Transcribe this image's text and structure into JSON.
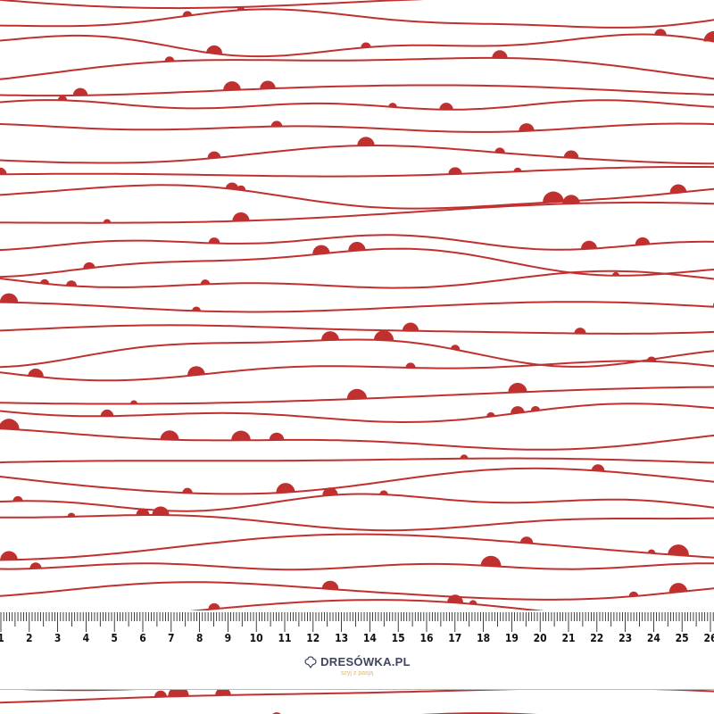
{
  "colors": {
    "line": "#c0302f",
    "dot": "#c0302f",
    "background": "#ffffff",
    "ruler_text": "#111111",
    "logo_text": "#3d4560",
    "tagline": "#e0b870"
  },
  "ruler": {
    "unit": "cm",
    "labels": [
      "1",
      "2",
      "3",
      "4",
      "5",
      "6",
      "7",
      "8",
      "9",
      "10",
      "11",
      "12",
      "13",
      "14",
      "15",
      "16",
      "17",
      "18",
      "19",
      "20",
      "21",
      "22",
      "23",
      "24",
      "25",
      "26"
    ]
  },
  "logo": {
    "name": "DRESÓWKA.PL",
    "tagline": "szyj z pasją",
    "icon": "cotton-flower-icon"
  }
}
